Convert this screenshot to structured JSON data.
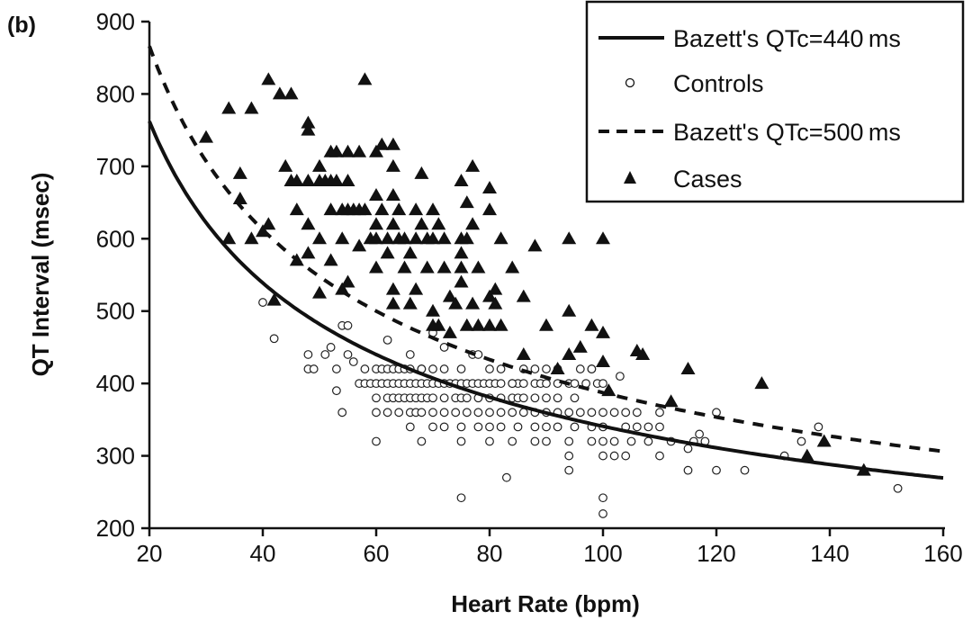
{
  "panel_label": "(b)",
  "chart_data": {
    "type": "scatter",
    "xlabel": "Heart Rate (bpm)",
    "ylabel": "QT Interval (msec)",
    "xlim": [
      20,
      160
    ],
    "ylim": [
      200,
      900
    ],
    "xticks": [
      20,
      40,
      60,
      80,
      100,
      120,
      140,
      160
    ],
    "yticks": [
      200,
      300,
      400,
      500,
      600,
      700,
      800,
      900
    ],
    "grid": false,
    "legend_position": "top-right",
    "legend": [
      {
        "label": "Bazett's QTc=440 ms",
        "style": "solid-line"
      },
      {
        "label": "Controls",
        "style": "open-circle"
      },
      {
        "label": "Bazett's QTc=500 ms",
        "style": "dashed-line"
      },
      {
        "label": "Cases",
        "style": "filled-triangle"
      }
    ],
    "curves": [
      {
        "name": "Bazett's QTc=440 ms",
        "qtc": 440,
        "style": "solid"
      },
      {
        "name": "Bazett's QTc=500 ms",
        "qtc": 500,
        "style": "dashed"
      }
    ],
    "series": [
      {
        "name": "Cases",
        "marker": "triangle",
        "points": [
          [
            30,
            740
          ],
          [
            34,
            780
          ],
          [
            34,
            600
          ],
          [
            36,
            690
          ],
          [
            36,
            655
          ],
          [
            38,
            780
          ],
          [
            38,
            600
          ],
          [
            40,
            610
          ],
          [
            41,
            820
          ],
          [
            41,
            620
          ],
          [
            42,
            515
          ],
          [
            43,
            800
          ],
          [
            44,
            700
          ],
          [
            45,
            800
          ],
          [
            45,
            680
          ],
          [
            46,
            680
          ],
          [
            46,
            640
          ],
          [
            46,
            570
          ],
          [
            48,
            760
          ],
          [
            48,
            750
          ],
          [
            48,
            680
          ],
          [
            48,
            620
          ],
          [
            48,
            580
          ],
          [
            50,
            700
          ],
          [
            50,
            680
          ],
          [
            50,
            600
          ],
          [
            50,
            525
          ],
          [
            51,
            680
          ],
          [
            52,
            720
          ],
          [
            52,
            680
          ],
          [
            52,
            640
          ],
          [
            52,
            570
          ],
          [
            53,
            720
          ],
          [
            53,
            680
          ],
          [
            54,
            640
          ],
          [
            54,
            600
          ],
          [
            54,
            530
          ],
          [
            55,
            720
          ],
          [
            55,
            680
          ],
          [
            55,
            640
          ],
          [
            55,
            540
          ],
          [
            56,
            640
          ],
          [
            57,
            720
          ],
          [
            57,
            640
          ],
          [
            57,
            590
          ],
          [
            58,
            820
          ],
          [
            58,
            640
          ],
          [
            59,
            600
          ],
          [
            60,
            720
          ],
          [
            60,
            660
          ],
          [
            60,
            620
          ],
          [
            60,
            600
          ],
          [
            60,
            560
          ],
          [
            61,
            730
          ],
          [
            61,
            640
          ],
          [
            62,
            600
          ],
          [
            62,
            580
          ],
          [
            63,
            730
          ],
          [
            63,
            700
          ],
          [
            63,
            660
          ],
          [
            63,
            620
          ],
          [
            63,
            530
          ],
          [
            63,
            510
          ],
          [
            64,
            640
          ],
          [
            64,
            600
          ],
          [
            65,
            560
          ],
          [
            65,
            600
          ],
          [
            66,
            510
          ],
          [
            66,
            580
          ],
          [
            67,
            640
          ],
          [
            67,
            600
          ],
          [
            67,
            530
          ],
          [
            68,
            690
          ],
          [
            68,
            620
          ],
          [
            69,
            600
          ],
          [
            69,
            560
          ],
          [
            70,
            640
          ],
          [
            70,
            600
          ],
          [
            70,
            500
          ],
          [
            70,
            480
          ],
          [
            71,
            620
          ],
          [
            71,
            480
          ],
          [
            72,
            600
          ],
          [
            72,
            560
          ],
          [
            73,
            520
          ],
          [
            73,
            470
          ],
          [
            74,
            510
          ],
          [
            75,
            680
          ],
          [
            75,
            600
          ],
          [
            75,
            580
          ],
          [
            75,
            560
          ],
          [
            75,
            540
          ],
          [
            76,
            600
          ],
          [
            76,
            650
          ],
          [
            76,
            480
          ],
          [
            77,
            700
          ],
          [
            77,
            620
          ],
          [
            77,
            510
          ],
          [
            78,
            560
          ],
          [
            78,
            480
          ],
          [
            80,
            670
          ],
          [
            80,
            640
          ],
          [
            80,
            520
          ],
          [
            80,
            480
          ],
          [
            81,
            530
          ],
          [
            81,
            510
          ],
          [
            82,
            600
          ],
          [
            82,
            480
          ],
          [
            84,
            560
          ],
          [
            86,
            520
          ],
          [
            86,
            440
          ],
          [
            88,
            590
          ],
          [
            90,
            480
          ],
          [
            92,
            420
          ],
          [
            94,
            600
          ],
          [
            94,
            500
          ],
          [
            94,
            440
          ],
          [
            96,
            450
          ],
          [
            98,
            480
          ],
          [
            100,
            600
          ],
          [
            100,
            470
          ],
          [
            100,
            430
          ],
          [
            101,
            390
          ],
          [
            106,
            445
          ],
          [
            107,
            440
          ],
          [
            112,
            375
          ],
          [
            115,
            420
          ],
          [
            128,
            400
          ],
          [
            136,
            300
          ],
          [
            139,
            320
          ],
          [
            146,
            280
          ]
        ]
      },
      {
        "name": "Controls",
        "marker": "circle",
        "points": [
          [
            58,
            420
          ],
          [
            60,
            420
          ],
          [
            61,
            420
          ],
          [
            62,
            420
          ],
          [
            63,
            420
          ],
          [
            64,
            420
          ],
          [
            65,
            420
          ],
          [
            66,
            420
          ],
          [
            68,
            420
          ],
          [
            70,
            420
          ],
          [
            72,
            420
          ],
          [
            75,
            420
          ],
          [
            80,
            420
          ],
          [
            82,
            420
          ],
          [
            86,
            420
          ],
          [
            88,
            420
          ],
          [
            90,
            420
          ],
          [
            96,
            420
          ],
          [
            98,
            420
          ],
          [
            57,
            400
          ],
          [
            58,
            400
          ],
          [
            59,
            400
          ],
          [
            60,
            400
          ],
          [
            61,
            400
          ],
          [
            62,
            400
          ],
          [
            63,
            400
          ],
          [
            64,
            400
          ],
          [
            65,
            400
          ],
          [
            66,
            400
          ],
          [
            67,
            400
          ],
          [
            68,
            400
          ],
          [
            69,
            400
          ],
          [
            70,
            400
          ],
          [
            71,
            400
          ],
          [
            72,
            400
          ],
          [
            73,
            400
          ],
          [
            74,
            400
          ],
          [
            75,
            400
          ],
          [
            76,
            400
          ],
          [
            77,
            400
          ],
          [
            78,
            400
          ],
          [
            79,
            400
          ],
          [
            80,
            400
          ],
          [
            81,
            400
          ],
          [
            82,
            400
          ],
          [
            84,
            400
          ],
          [
            85,
            400
          ],
          [
            86,
            400
          ],
          [
            88,
            400
          ],
          [
            89,
            400
          ],
          [
            90,
            400
          ],
          [
            92,
            400
          ],
          [
            94,
            400
          ],
          [
            95,
            400
          ],
          [
            97,
            400
          ],
          [
            99,
            400
          ],
          [
            100,
            400
          ],
          [
            60,
            380
          ],
          [
            62,
            380
          ],
          [
            63,
            380
          ],
          [
            64,
            380
          ],
          [
            65,
            380
          ],
          [
            66,
            380
          ],
          [
            67,
            380
          ],
          [
            68,
            380
          ],
          [
            69,
            380
          ],
          [
            70,
            380
          ],
          [
            72,
            380
          ],
          [
            74,
            380
          ],
          [
            75,
            380
          ],
          [
            76,
            380
          ],
          [
            78,
            380
          ],
          [
            80,
            380
          ],
          [
            82,
            380
          ],
          [
            84,
            380
          ],
          [
            85,
            380
          ],
          [
            86,
            380
          ],
          [
            88,
            380
          ],
          [
            90,
            380
          ],
          [
            92,
            380
          ],
          [
            95,
            380
          ],
          [
            60,
            360
          ],
          [
            62,
            360
          ],
          [
            64,
            360
          ],
          [
            66,
            360
          ],
          [
            67,
            360
          ],
          [
            68,
            360
          ],
          [
            70,
            360
          ],
          [
            72,
            360
          ],
          [
            74,
            360
          ],
          [
            76,
            360
          ],
          [
            78,
            360
          ],
          [
            80,
            360
          ],
          [
            82,
            360
          ],
          [
            84,
            360
          ],
          [
            86,
            360
          ],
          [
            88,
            360
          ],
          [
            90,
            360
          ],
          [
            92,
            360
          ],
          [
            94,
            360
          ],
          [
            96,
            360
          ],
          [
            98,
            360
          ],
          [
            100,
            360
          ],
          [
            102,
            360
          ],
          [
            104,
            360
          ],
          [
            106,
            360
          ],
          [
            110,
            360
          ],
          [
            120,
            360
          ],
          [
            66,
            340
          ],
          [
            70,
            340
          ],
          [
            72,
            340
          ],
          [
            75,
            340
          ],
          [
            78,
            340
          ],
          [
            80,
            340
          ],
          [
            82,
            340
          ],
          [
            85,
            340
          ],
          [
            88,
            340
          ],
          [
            90,
            340
          ],
          [
            92,
            340
          ],
          [
            95,
            340
          ],
          [
            98,
            340
          ],
          [
            100,
            340
          ],
          [
            104,
            340
          ],
          [
            106,
            340
          ],
          [
            108,
            340
          ],
          [
            110,
            340
          ],
          [
            60,
            320
          ],
          [
            68,
            320
          ],
          [
            75,
            320
          ],
          [
            80,
            320
          ],
          [
            84,
            320
          ],
          [
            88,
            320
          ],
          [
            90,
            320
          ],
          [
            94,
            320
          ],
          [
            98,
            320
          ],
          [
            100,
            320
          ],
          [
            102,
            320
          ],
          [
            105,
            320
          ],
          [
            108,
            320
          ],
          [
            112,
            320
          ],
          [
            116,
            320
          ],
          [
            118,
            320
          ],
          [
            94,
            300
          ],
          [
            100,
            300
          ],
          [
            102,
            300
          ],
          [
            104,
            300
          ],
          [
            110,
            300
          ],
          [
            40,
            512
          ],
          [
            42,
            462
          ],
          [
            48,
            440
          ],
          [
            48,
            420
          ],
          [
            49,
            420
          ],
          [
            51,
            440
          ],
          [
            52,
            450
          ],
          [
            53,
            390
          ],
          [
            53,
            420
          ],
          [
            54,
            360
          ],
          [
            54,
            480
          ],
          [
            55,
            480
          ],
          [
            55,
            440
          ],
          [
            56,
            430
          ],
          [
            62,
            460
          ],
          [
            66,
            440
          ],
          [
            68,
            420
          ],
          [
            70,
            470
          ],
          [
            72,
            450
          ],
          [
            77,
            440
          ],
          [
            78,
            440
          ],
          [
            84,
            400
          ],
          [
            92,
            420
          ],
          [
            98,
            420
          ],
          [
            103,
            410
          ],
          [
            75,
            242
          ],
          [
            83,
            270
          ],
          [
            100,
            242
          ],
          [
            100,
            220
          ],
          [
            152,
            255
          ],
          [
            94,
            280
          ],
          [
            115,
            280
          ],
          [
            120,
            280
          ],
          [
            125,
            280
          ],
          [
            132,
            300
          ],
          [
            135,
            320
          ],
          [
            138,
            340
          ],
          [
            117,
            330
          ],
          [
            115,
            310
          ]
        ]
      }
    ]
  }
}
